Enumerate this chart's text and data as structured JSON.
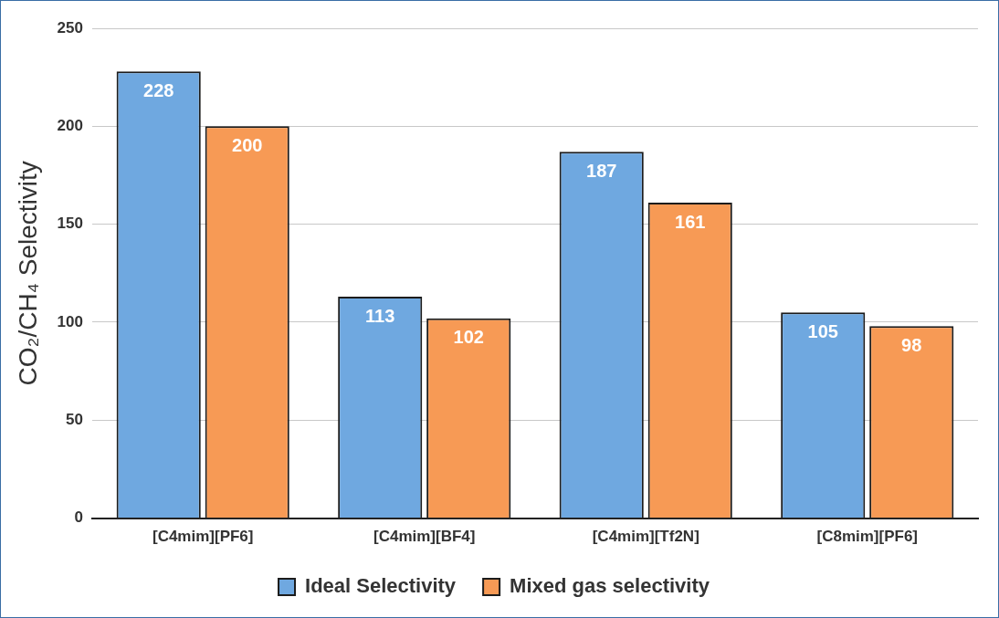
{
  "chart_data": {
    "type": "bar",
    "ylabel": "CO₂/CH₄ Selectivity",
    "categories": [
      "[C4mim][PF6]",
      "[C4mim][BF4]",
      "[C4mim][Tf2N]",
      "[C8mim][PF6]"
    ],
    "series": [
      {
        "name": "Ideal Selectivity",
        "color": "#6fa8e0",
        "values": [
          228,
          113,
          187,
          105
        ]
      },
      {
        "name": "Mixed gas selectivity",
        "color": "#f79a55",
        "values": [
          200,
          102,
          161,
          98
        ]
      }
    ],
    "ylim": [
      0,
      250
    ],
    "yticks": [
      0,
      50,
      100,
      150,
      200,
      250
    ],
    "grid": "y",
    "legend": "bottom",
    "data_labels": true
  }
}
